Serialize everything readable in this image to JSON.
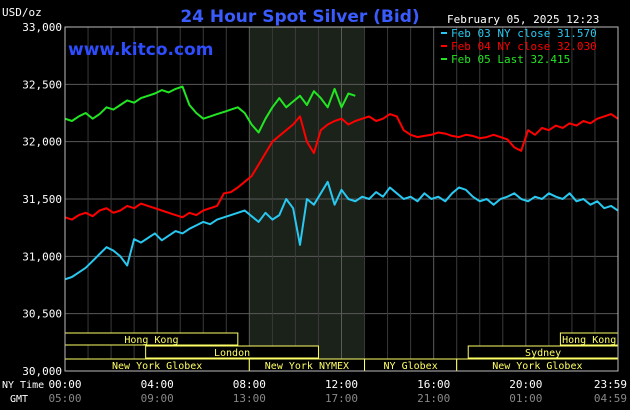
{
  "header": {
    "title": "24 Hour Spot Silver (Bid)",
    "date": "February 05, 2025 12:23",
    "unit": "USD/oz",
    "site": "www.kitco.com"
  },
  "legend": [
    {
      "label": "Feb 03 NY close 31.570",
      "color": "#28c8f0"
    },
    {
      "label": "Feb 04 NY close 32.030",
      "color": "#ff0000"
    },
    {
      "label": "Feb 05 Last 32.415",
      "color": "#22e622"
    }
  ],
  "sessions": {
    "row1": [
      {
        "label": "Hong Kong",
        "start": 0,
        "end": 7.5
      },
      {
        "label": "Hong Kong",
        "start": 21.5,
        "end": 24
      }
    ],
    "row2": [
      {
        "label": "London",
        "start": 3.5,
        "end": 11
      },
      {
        "label": "Sydney",
        "start": 17.5,
        "end": 24
      }
    ],
    "row3": [
      {
        "label": "New York Globex",
        "start": 0,
        "end": 8
      },
      {
        "label": "New York NYMEX",
        "start": 8,
        "end": 13
      },
      {
        "label": "NY Globex",
        "start": 13,
        "end": 17
      },
      {
        "label": "New York Globex",
        "start": 17,
        "end": 24
      }
    ]
  },
  "bottom_axis": {
    "ny_label": "NY Time",
    "gmt_label": "GMT",
    "ny_ticks": [
      "00:00",
      "04:00",
      "08:00",
      "12:00",
      "16:00",
      "20:00",
      "23:59"
    ],
    "gmt_ticks": [
      "05:00",
      "09:00",
      "13:00",
      "17:00",
      "21:00",
      "01:00",
      "04:59"
    ]
  },
  "chart_data": {
    "type": "line",
    "title": "24 Hour Spot Silver (Bid)",
    "ylabel": "USD/oz",
    "xlabel": "NY Time",
    "xlim": [
      0,
      24
    ],
    "ylim": [
      30.0,
      33.0
    ],
    "y_ticks": [
      "33,000",
      "32,500",
      "32,000",
      "31,500",
      "31,000",
      "30,500",
      "30,000"
    ],
    "nymex_highlight": [
      8,
      13
    ],
    "grid": true,
    "series": [
      {
        "name": "Feb 03 NY close 31.570",
        "color": "#28c8f0",
        "x": [
          0,
          0.3,
          0.6,
          0.9,
          1.2,
          1.5,
          1.8,
          2.1,
          2.4,
          2.7,
          3.0,
          3.3,
          3.6,
          3.9,
          4.2,
          4.5,
          4.8,
          5.1,
          5.4,
          5.7,
          6.0,
          6.3,
          6.6,
          6.9,
          7.2,
          7.5,
          7.8,
          8.1,
          8.4,
          8.7,
          9.0,
          9.3,
          9.6,
          9.9,
          10.2,
          10.5,
          10.8,
          11.1,
          11.4,
          11.7,
          12.0,
          12.3,
          12.6,
          12.9,
          13.2,
          13.5,
          13.8,
          14.1,
          14.4,
          14.7,
          15.0,
          15.3,
          15.6,
          15.9,
          16.2,
          16.5,
          16.8,
          17.1,
          17.4,
          17.7,
          18.0,
          18.3,
          18.6,
          18.9,
          19.2,
          19.5,
          19.8,
          20.1,
          20.4,
          20.7,
          21.0,
          21.3,
          21.6,
          21.9,
          22.2,
          22.5,
          22.8,
          23.1,
          23.4,
          23.7,
          23.99
        ],
        "values": [
          30.8,
          30.82,
          30.86,
          30.9,
          30.96,
          31.02,
          31.08,
          31.05,
          31.0,
          30.92,
          31.15,
          31.12,
          31.16,
          31.2,
          31.14,
          31.18,
          31.22,
          31.2,
          31.24,
          31.27,
          31.3,
          31.28,
          31.32,
          31.34,
          31.36,
          31.38,
          31.4,
          31.35,
          31.3,
          31.38,
          31.32,
          31.36,
          31.5,
          31.42,
          31.1,
          31.5,
          31.45,
          31.55,
          31.65,
          31.45,
          31.58,
          31.5,
          31.48,
          31.52,
          31.5,
          31.56,
          31.52,
          31.6,
          31.55,
          31.5,
          31.52,
          31.48,
          31.55,
          31.5,
          31.52,
          31.48,
          31.55,
          31.6,
          31.58,
          31.52,
          31.48,
          31.5,
          31.45,
          31.5,
          31.52,
          31.55,
          31.5,
          31.48,
          31.52,
          31.5,
          31.55,
          31.52,
          31.5,
          31.55,
          31.48,
          31.5,
          31.45,
          31.48,
          31.42,
          31.44,
          31.4
        ]
      },
      {
        "name": "Feb 04 NY close 32.030",
        "color": "#ff0000",
        "x": [
          0,
          0.3,
          0.6,
          0.9,
          1.2,
          1.5,
          1.8,
          2.1,
          2.4,
          2.7,
          3.0,
          3.3,
          3.6,
          3.9,
          4.2,
          4.5,
          4.8,
          5.1,
          5.4,
          5.7,
          6.0,
          6.3,
          6.6,
          6.9,
          7.2,
          7.5,
          7.8,
          8.1,
          8.4,
          8.7,
          9.0,
          9.3,
          9.6,
          9.9,
          10.2,
          10.5,
          10.8,
          11.1,
          11.4,
          11.7,
          12.0,
          12.3,
          12.6,
          12.9,
          13.2,
          13.5,
          13.8,
          14.1,
          14.4,
          14.7,
          15.0,
          15.3,
          15.6,
          15.9,
          16.2,
          16.5,
          16.8,
          17.1,
          17.4,
          17.7,
          18.0,
          18.3,
          18.6,
          18.9,
          19.2,
          19.5,
          19.8,
          20.1,
          20.4,
          20.7,
          21.0,
          21.3,
          21.6,
          21.9,
          22.2,
          22.5,
          22.8,
          23.1,
          23.4,
          23.7,
          23.99
        ],
        "values": [
          31.34,
          31.32,
          31.36,
          31.38,
          31.35,
          31.4,
          31.42,
          31.38,
          31.4,
          31.44,
          31.42,
          31.46,
          31.44,
          31.42,
          31.4,
          31.38,
          31.36,
          31.34,
          31.38,
          31.36,
          31.4,
          31.42,
          31.44,
          31.55,
          31.56,
          31.6,
          31.65,
          31.7,
          31.8,
          31.9,
          32.0,
          32.05,
          32.1,
          32.15,
          32.22,
          32.0,
          31.9,
          32.1,
          32.15,
          32.18,
          32.2,
          32.15,
          32.18,
          32.2,
          32.22,
          32.18,
          32.2,
          32.24,
          32.22,
          32.1,
          32.06,
          32.04,
          32.05,
          32.06,
          32.08,
          32.07,
          32.05,
          32.04,
          32.06,
          32.05,
          32.03,
          32.04,
          32.06,
          32.04,
          32.02,
          31.95,
          31.92,
          32.1,
          32.06,
          32.12,
          32.1,
          32.14,
          32.12,
          32.16,
          32.14,
          32.18,
          32.16,
          32.2,
          32.22,
          32.24,
          32.2
        ]
      },
      {
        "name": "Feb 05 Last 32.415",
        "color": "#22e622",
        "x": [
          0,
          0.3,
          0.6,
          0.9,
          1.2,
          1.5,
          1.8,
          2.1,
          2.4,
          2.7,
          3.0,
          3.3,
          3.6,
          3.9,
          4.2,
          4.5,
          4.8,
          5.1,
          5.4,
          5.7,
          6.0,
          6.3,
          6.6,
          6.9,
          7.2,
          7.5,
          7.8,
          8.1,
          8.4,
          8.7,
          9.0,
          9.3,
          9.6,
          9.9,
          10.2,
          10.5,
          10.8,
          11.1,
          11.4,
          11.7,
          12.0,
          12.3,
          12.6
        ],
        "values": [
          32.2,
          32.18,
          32.22,
          32.25,
          32.2,
          32.24,
          32.3,
          32.28,
          32.32,
          32.36,
          32.34,
          32.38,
          32.4,
          32.42,
          32.45,
          32.43,
          32.46,
          32.48,
          32.32,
          32.25,
          32.2,
          32.22,
          32.24,
          32.26,
          32.28,
          32.3,
          32.25,
          32.15,
          32.08,
          32.2,
          32.3,
          32.38,
          32.3,
          32.35,
          32.4,
          32.32,
          32.44,
          32.38,
          32.3,
          32.46,
          32.3,
          32.42,
          32.4
        ]
      }
    ]
  }
}
